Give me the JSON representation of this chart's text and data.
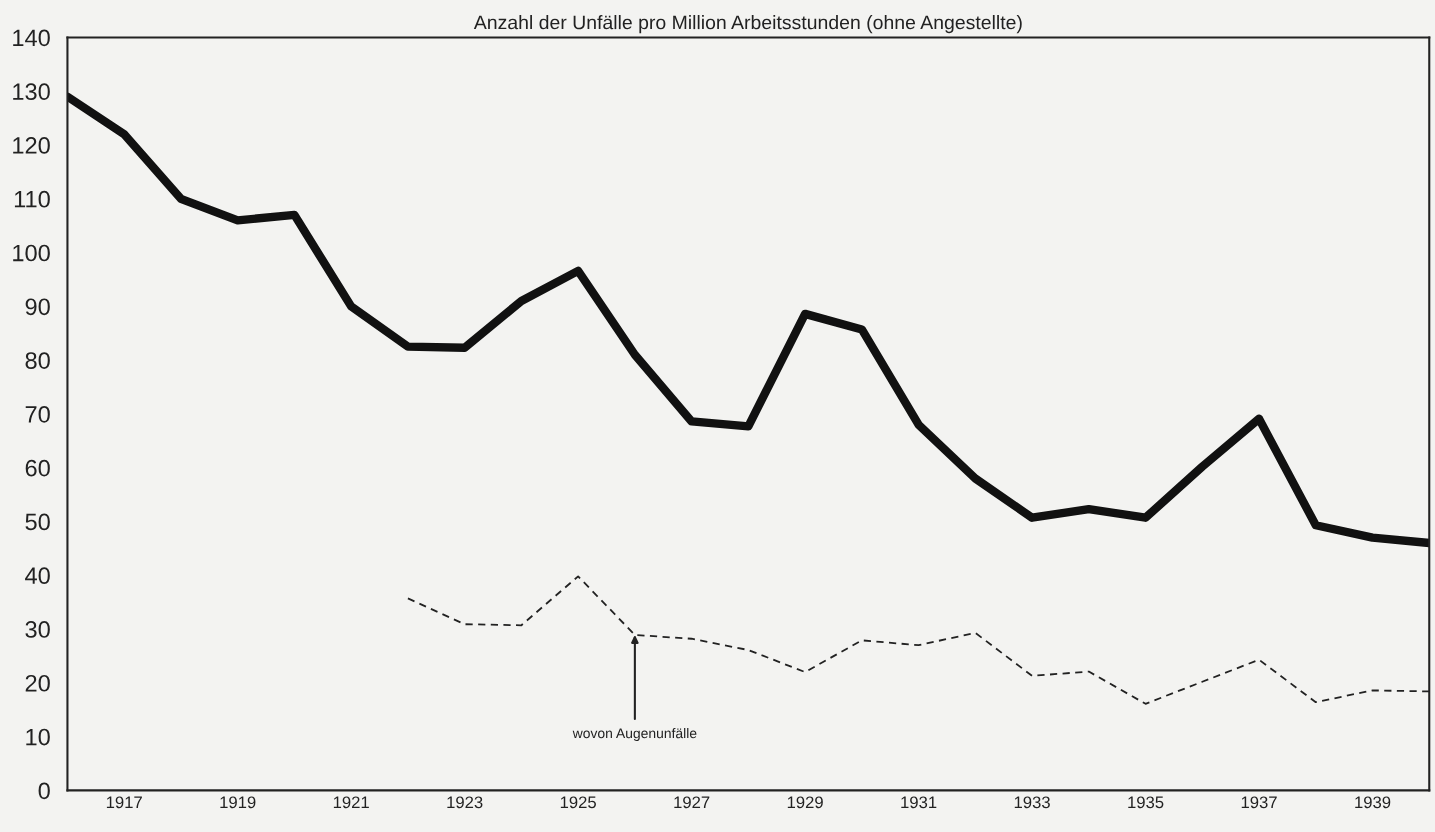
{
  "chart_data": {
    "type": "line",
    "title": "Anzahl der Unfälle pro Million Arbeitsstunden (ohne Angestellte)",
    "x": [
      1916,
      1917,
      1918,
      1919,
      1920,
      1921,
      1922,
      1923,
      1924,
      1925,
      1926,
      1927,
      1928,
      1929,
      1930,
      1931,
      1932,
      1933,
      1934,
      1935,
      1936,
      1937,
      1938,
      1939,
      1940
    ],
    "series": [
      {
        "color": "#111111",
        "line_style": "solid",
        "values": [
          129,
          122,
          110,
          106,
          107,
          90,
          82.5,
          82.3,
          91,
          96.6,
          81,
          68.6,
          67.7,
          88.6,
          85.7,
          68,
          58,
          50.7,
          52.3,
          50.7,
          60.2,
          69.1,
          49.3,
          47,
          46
        ]
      },
      {
        "color": "#222222",
        "line_style": "dashed",
        "values": [
          null,
          null,
          null,
          null,
          null,
          null,
          35.7,
          30.9,
          30.7,
          39.8,
          28.9,
          28.2,
          26.1,
          22,
          27.9,
          27,
          29.3,
          21.3,
          22.1,
          16.1,
          20.2,
          24.3,
          16.4,
          18.6,
          18.4
        ]
      }
    ],
    "xlim": [
      1916,
      1940
    ],
    "xticks": [
      1917,
      1919,
      1921,
      1923,
      1925,
      1927,
      1929,
      1931,
      1933,
      1935,
      1937,
      1939
    ],
    "ylim": [
      0,
      140
    ],
    "yticks": [
      0,
      10,
      20,
      30,
      40,
      50,
      60,
      70,
      80,
      90,
      100,
      110,
      120,
      130,
      140
    ],
    "grid": false,
    "legend": false,
    "annotations": [
      {
        "text": "wovon Augenunfälle",
        "x": 1926,
        "y": 28.9
      }
    ]
  }
}
